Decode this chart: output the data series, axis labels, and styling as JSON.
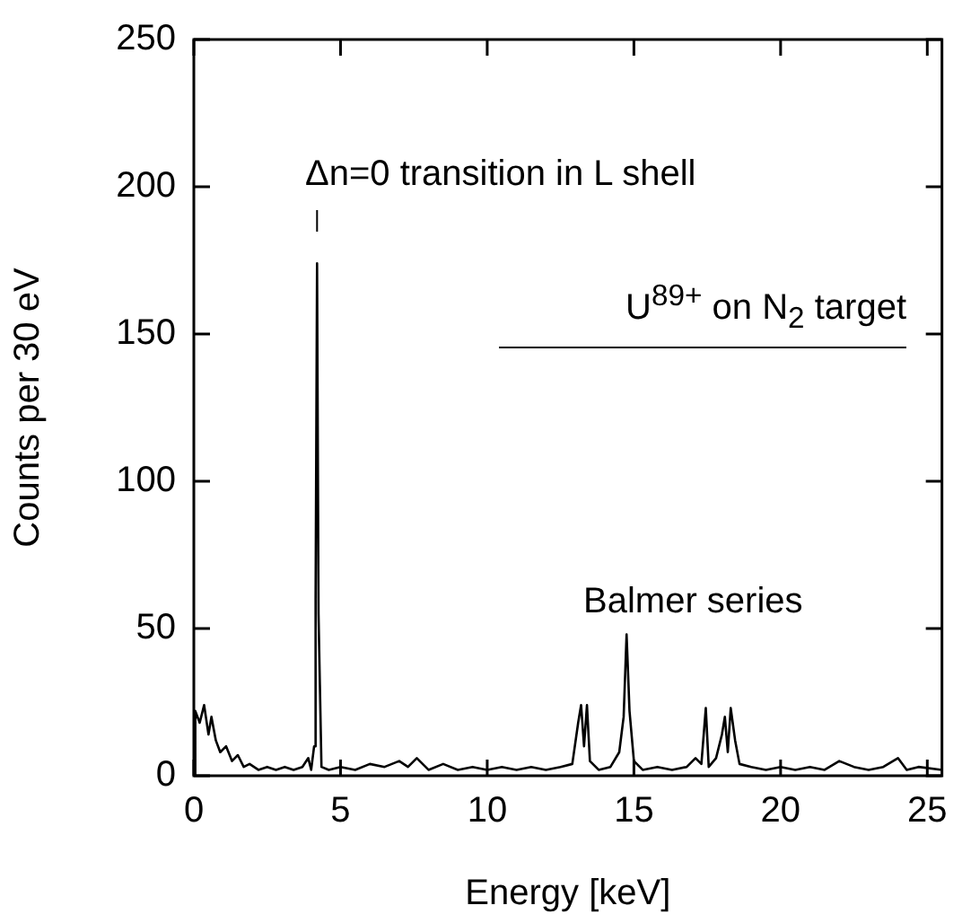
{
  "chart_data": {
    "type": "line",
    "xlabel": "Energy [keV]",
    "ylabel": "Counts per 30 eV",
    "xlim": [
      0,
      25.5
    ],
    "ylim": [
      0,
      250
    ],
    "xticks": [
      0,
      5,
      10,
      15,
      20,
      25
    ],
    "yticks": [
      0,
      50,
      100,
      150,
      200,
      250
    ],
    "grid": false,
    "legend": false,
    "marker": "none",
    "line_style": "solid",
    "annotations": [
      "Δn=0 transition in L shell",
      "U$^{89+}$ on N$_{2}$ target",
      "Balmer series"
    ],
    "series": [
      {
        "color": "#000000",
        "x": [
          0,
          0.05,
          0.2,
          0.35,
          0.5,
          0.6,
          0.75,
          0.9,
          1.1,
          1.3,
          1.5,
          1.7,
          1.9,
          2.2,
          2.5,
          2.8,
          3.1,
          3.4,
          3.7,
          3.9,
          4.0,
          4.1,
          4.15,
          4.2,
          4.25,
          4.35,
          4.6,
          5.0,
          5.5,
          6.0,
          6.5,
          7.0,
          7.3,
          7.6,
          8.0,
          8.5,
          9.0,
          9.5,
          10,
          10.5,
          11,
          11.5,
          12,
          12.5,
          12.9,
          13.1,
          13.2,
          13.3,
          13.4,
          13.5,
          13.8,
          14.2,
          14.5,
          14.65,
          14.75,
          14.85,
          15.0,
          15.3,
          15.8,
          16.3,
          16.8,
          17.1,
          17.3,
          17.45,
          17.55,
          17.8,
          18.0,
          18.1,
          18.2,
          18.3,
          18.45,
          18.6,
          19,
          19.5,
          20,
          20.5,
          21,
          21.5,
          22,
          22.5,
          23,
          23.5,
          24,
          24.3,
          24.7,
          25.5
        ],
        "values": [
          0,
          22,
          18,
          24,
          14,
          20,
          12,
          8,
          10,
          5,
          7,
          3,
          4,
          2,
          3,
          2,
          3,
          2,
          3,
          6,
          2,
          10,
          60,
          174,
          55,
          3,
          2,
          3,
          2,
          4,
          3,
          5,
          3,
          6,
          2,
          4,
          2,
          3,
          2,
          3,
          2,
          3,
          2,
          3,
          4,
          18,
          24,
          10,
          24,
          5,
          2,
          3,
          8,
          20,
          48,
          22,
          5,
          2,
          3,
          2,
          3,
          6,
          4,
          23,
          3,
          6,
          14,
          20,
          8,
          23,
          12,
          4,
          3,
          2,
          3,
          2,
          3,
          2,
          5,
          3,
          2,
          3,
          6,
          2,
          3,
          2
        ]
      }
    ]
  }
}
